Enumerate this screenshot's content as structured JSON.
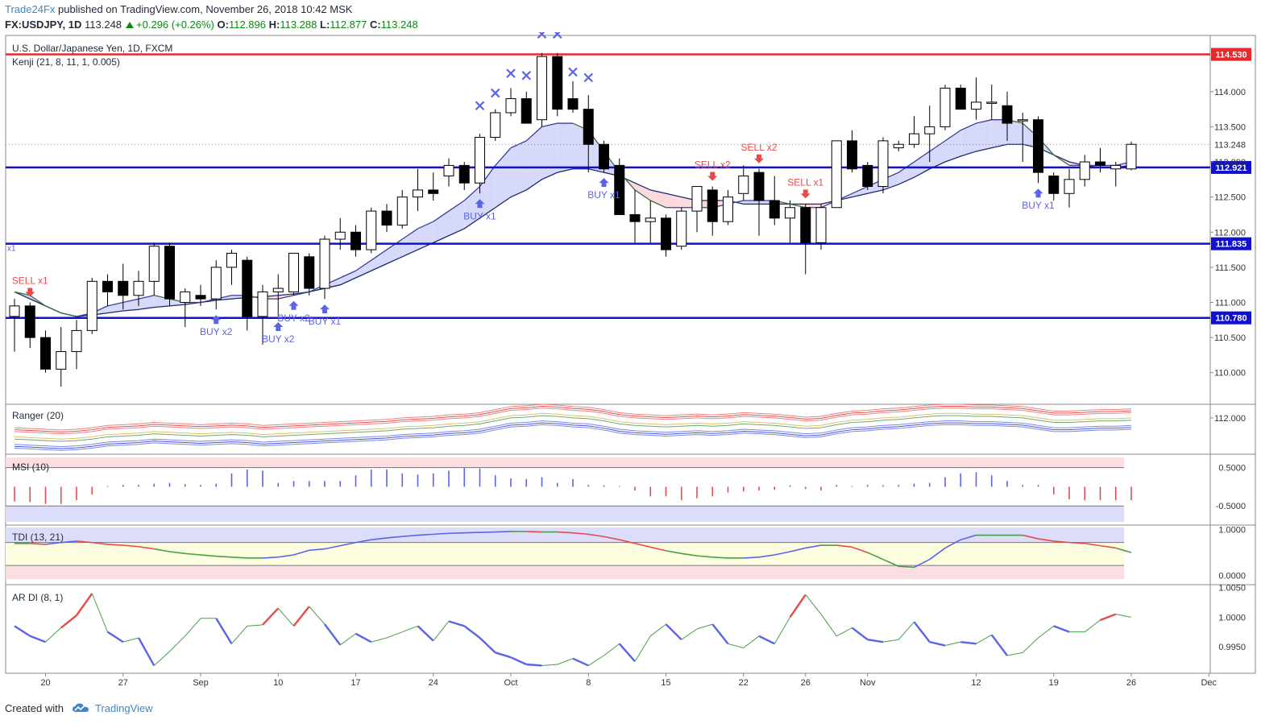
{
  "header": {
    "author": "Trade24Fx",
    "published": "published on TradingView.com, November 26, 2018 10:42 MSK",
    "symbol": "FX:USDJPY, 1D",
    "last": "113.248",
    "change": "+0.296 (+0.26%)",
    "o_label": "O:",
    "o_value": "112.896",
    "h_label": "H:",
    "h_value": "113.288",
    "l_label": "L:",
    "l_value": "112.877",
    "c_label": "C:",
    "c_value": "113.248"
  },
  "footer": {
    "created_with": "Created with",
    "brand": "TradingView"
  },
  "colors": {
    "up_body": "#ffffff",
    "down_body": "#000000",
    "level_red": "#e8282b",
    "level_blue": "#1010d0",
    "buy": "#5b63e8",
    "sell": "#e54b4b",
    "cloud_bull": "#d7d9fb",
    "cloud_bear": "#fcd9dd"
  },
  "chart_data": {
    "type": "candlestick",
    "title": "U.S. Dollar/Japanese Yen, 1D, FXCM",
    "indicator": "Kenji (21, 8, 11, 1, 0.005)",
    "ylim": [
      109.55,
      114.8
    ],
    "y_ticks": [
      "114.000",
      "113.500",
      "113.000",
      "112.500",
      "112.000",
      "111.500",
      "111.000",
      "110.500",
      "110.000"
    ],
    "x_ticks": [
      "20",
      "27",
      "Sep",
      "10",
      "17",
      "24",
      "Oct",
      "8",
      "15",
      "22",
      "26",
      "Nov",
      "12",
      "19",
      "26",
      "Dec"
    ],
    "levels": [
      {
        "value": 114.53,
        "label": "114.530",
        "color": "red"
      },
      {
        "value": 112.921,
        "label": "112.921",
        "color": "blue"
      },
      {
        "value": 111.835,
        "label": "111.835",
        "color": "blue"
      },
      {
        "value": 110.78,
        "label": "110.780",
        "color": "blue"
      }
    ],
    "last_price": {
      "value": 113.248,
      "label": "113.248"
    },
    "candles": [
      [
        110.8,
        111.05,
        110.3,
        110.95
      ],
      [
        110.95,
        111.0,
        110.35,
        110.5
      ],
      [
        110.5,
        110.6,
        110.0,
        110.05
      ],
      [
        110.05,
        110.65,
        109.8,
        110.3
      ],
      [
        110.3,
        110.75,
        110.05,
        110.6
      ],
      [
        110.6,
        111.35,
        110.55,
        111.3
      ],
      [
        111.3,
        111.4,
        110.95,
        111.15
      ],
      [
        111.3,
        111.55,
        110.9,
        111.1
      ],
      [
        111.1,
        111.45,
        110.95,
        111.3
      ],
      [
        111.3,
        111.85,
        111.1,
        111.8
      ],
      [
        111.8,
        111.85,
        110.95,
        111.05
      ],
      [
        111.0,
        111.2,
        110.65,
        111.15
      ],
      [
        111.1,
        111.25,
        110.95,
        111.05
      ],
      [
        111.05,
        111.6,
        110.9,
        111.5
      ],
      [
        111.5,
        111.75,
        111.25,
        111.7
      ],
      [
        111.6,
        111.65,
        110.6,
        110.8
      ],
      [
        110.8,
        111.25,
        110.4,
        111.15
      ],
      [
        111.15,
        111.4,
        110.8,
        111.2
      ],
      [
        111.15,
        111.7,
        111.1,
        111.7
      ],
      [
        111.65,
        111.7,
        111.1,
        111.2
      ],
      [
        111.2,
        111.95,
        111.05,
        111.9
      ],
      [
        111.9,
        112.2,
        111.75,
        112.0
      ],
      [
        112.0,
        112.1,
        111.65,
        111.75
      ],
      [
        111.75,
        112.35,
        111.7,
        112.3
      ],
      [
        112.3,
        112.4,
        112.0,
        112.1
      ],
      [
        112.1,
        112.6,
        112.05,
        112.5
      ],
      [
        112.5,
        112.9,
        112.3,
        112.6
      ],
      [
        112.6,
        112.85,
        112.45,
        112.55
      ],
      [
        112.8,
        113.05,
        112.65,
        112.95
      ],
      [
        112.95,
        113.0,
        112.6,
        112.7
      ],
      [
        112.7,
        113.4,
        112.55,
        113.35
      ],
      [
        113.35,
        113.75,
        113.3,
        113.7
      ],
      [
        113.7,
        114.05,
        113.65,
        113.9
      ],
      [
        113.9,
        114.0,
        113.55,
        113.55
      ],
      [
        113.6,
        114.55,
        113.5,
        114.5
      ],
      [
        114.5,
        114.55,
        113.65,
        113.75
      ],
      [
        113.9,
        114.15,
        113.7,
        113.75
      ],
      [
        113.75,
        113.95,
        112.85,
        113.25
      ],
      [
        113.25,
        113.3,
        112.85,
        112.9
      ],
      [
        112.95,
        113.05,
        112.25,
        112.25
      ],
      [
        112.25,
        112.6,
        111.85,
        112.15
      ],
      [
        112.15,
        112.45,
        111.85,
        112.2
      ],
      [
        112.2,
        112.25,
        111.65,
        111.75
      ],
      [
        111.8,
        112.35,
        111.75,
        112.3
      ],
      [
        112.3,
        112.65,
        112.0,
        112.65
      ],
      [
        112.6,
        112.65,
        111.95,
        112.15
      ],
      [
        112.15,
        112.6,
        112.1,
        112.5
      ],
      [
        112.55,
        112.95,
        112.45,
        112.8
      ],
      [
        112.85,
        112.9,
        111.95,
        112.45
      ],
      [
        112.45,
        112.8,
        112.1,
        112.2
      ],
      [
        112.2,
        112.45,
        111.85,
        112.35
      ],
      [
        112.35,
        112.4,
        111.4,
        111.85
      ],
      [
        111.85,
        112.4,
        111.75,
        112.35
      ],
      [
        112.35,
        113.3,
        112.35,
        113.3
      ],
      [
        113.3,
        113.45,
        112.85,
        112.9
      ],
      [
        112.95,
        113.0,
        112.6,
        112.65
      ],
      [
        112.65,
        113.35,
        112.55,
        113.3
      ],
      [
        113.2,
        113.3,
        113.15,
        113.25
      ],
      [
        113.25,
        113.65,
        113.2,
        113.4
      ],
      [
        113.4,
        113.8,
        113.0,
        113.5
      ],
      [
        113.5,
        114.1,
        113.45,
        114.05
      ],
      [
        114.05,
        114.1,
        113.75,
        113.75
      ],
      [
        113.75,
        114.2,
        113.6,
        113.85
      ],
      [
        113.85,
        114.1,
        113.6,
        113.85
      ],
      [
        113.8,
        114.0,
        113.3,
        113.55
      ],
      [
        113.6,
        113.7,
        113.0,
        113.6
      ],
      [
        113.6,
        113.65,
        112.7,
        112.85
      ],
      [
        112.8,
        112.85,
        112.45,
        112.55
      ],
      [
        112.55,
        112.9,
        112.35,
        112.75
      ],
      [
        112.75,
        113.1,
        112.65,
        113.0
      ],
      [
        113.0,
        113.2,
        112.85,
        112.95
      ],
      [
        112.9,
        113.0,
        112.65,
        112.95
      ],
      [
        112.9,
        113.29,
        112.88,
        113.25
      ]
    ],
    "kenji_fast": [
      111.15,
      111.1,
      110.95,
      110.85,
      110.8,
      110.85,
      110.95,
      111.0,
      111.05,
      111.1,
      111.05,
      111.0,
      111.0,
      111.05,
      111.1,
      111.1,
      111.05,
      111.05,
      111.1,
      111.15,
      111.25,
      111.35,
      111.45,
      111.6,
      111.75,
      111.9,
      112.05,
      112.15,
      112.3,
      112.45,
      112.65,
      112.95,
      113.2,
      113.3,
      113.5,
      113.55,
      113.55,
      113.45,
      113.15,
      112.85,
      112.6,
      112.45,
      112.35,
      112.35,
      112.35,
      112.35,
      112.4,
      112.45,
      112.45,
      112.45,
      112.4,
      112.35,
      112.35,
      112.45,
      112.55,
      112.65,
      112.75,
      112.85,
      113.0,
      113.15,
      113.3,
      113.45,
      113.55,
      113.6,
      113.6,
      113.55,
      113.35,
      113.1,
      112.95,
      112.95,
      112.95,
      112.95,
      113.0
    ],
    "kenji_slow": [
      111.15,
      111.05,
      110.95,
      110.85,
      110.8,
      110.82,
      110.85,
      110.88,
      110.9,
      110.93,
      110.95,
      110.97,
      111.0,
      111.03,
      111.05,
      111.07,
      111.08,
      111.1,
      111.12,
      111.15,
      111.2,
      111.25,
      111.35,
      111.45,
      111.55,
      111.65,
      111.75,
      111.85,
      111.95,
      112.05,
      112.2,
      112.35,
      112.5,
      112.6,
      112.75,
      112.85,
      112.9,
      112.9,
      112.85,
      112.8,
      112.7,
      112.6,
      112.55,
      112.5,
      112.45,
      112.45,
      112.45,
      112.4,
      112.4,
      112.4,
      112.4,
      112.4,
      112.4,
      112.45,
      112.5,
      112.55,
      112.6,
      112.68,
      112.78,
      112.9,
      113.0,
      113.08,
      113.15,
      113.2,
      113.25,
      113.25,
      113.2,
      113.1,
      113.0,
      112.95,
      112.92,
      112.92,
      112.95
    ],
    "signals": [
      {
        "i": 1,
        "type": "sell",
        "label": "SELL x1"
      },
      {
        "i": 13,
        "type": "buy",
        "label": "BUY x2"
      },
      {
        "i": 17,
        "type": "buy",
        "label": "BUY x2"
      },
      {
        "i": 18,
        "type": "buy",
        "label": "BUY x2"
      },
      {
        "i": 20,
        "type": "buy",
        "label": "BUY x1"
      },
      {
        "i": 30,
        "type": "buy",
        "label": "BUY x1"
      },
      {
        "i": 38,
        "type": "buy",
        "label": "BUY x1"
      },
      {
        "i": 45,
        "type": "sell",
        "label": "SELL x2"
      },
      {
        "i": 48,
        "type": "sell",
        "label": "SELL x2"
      },
      {
        "i": 51,
        "type": "sell",
        "label": "SELL x1"
      },
      {
        "i": 66,
        "type": "buy",
        "label": "BUY x1"
      }
    ],
    "edge_label": "x1",
    "crosses": [
      {
        "i": 30,
        "v": 113.8
      },
      {
        "i": 31,
        "v": 113.98
      },
      {
        "i": 32,
        "v": 114.26
      },
      {
        "i": 33,
        "v": 114.23
      },
      {
        "i": 34,
        "v": 114.82
      },
      {
        "i": 35,
        "v": 114.82
      },
      {
        "i": 36,
        "v": 114.28
      },
      {
        "i": 37,
        "v": 114.2
      }
    ],
    "ranger": {
      "name": "Ranger (20)",
      "y_ticks": [
        "112.000"
      ],
      "mid": [
        110.6,
        110.55,
        110.5,
        110.45,
        110.5,
        110.6,
        110.75,
        110.8,
        110.85,
        110.95,
        110.9,
        110.85,
        110.8,
        110.85,
        110.9,
        110.85,
        110.75,
        110.8,
        110.85,
        110.9,
        110.95,
        111.0,
        111.05,
        111.1,
        111.15,
        111.25,
        111.3,
        111.35,
        111.45,
        111.5,
        111.6,
        111.8,
        112.0,
        112.05,
        112.15,
        112.1,
        112.0,
        111.95,
        111.8,
        111.6,
        111.5,
        111.45,
        111.4,
        111.45,
        111.5,
        111.45,
        111.5,
        111.6,
        111.55,
        111.5,
        111.4,
        111.3,
        111.35,
        111.55,
        111.7,
        111.75,
        111.85,
        111.9,
        112.0,
        112.1,
        112.15,
        112.15,
        112.1,
        112.1,
        112.05,
        112.0,
        111.85,
        111.7,
        111.7,
        111.75,
        111.8,
        111.8,
        111.85
      ]
    },
    "msi": {
      "name": "MSI (10)",
      "y_ticks": [
        "0.5000",
        "-0.5000"
      ],
      "values": [
        -0.38,
        -0.4,
        -0.45,
        -0.45,
        -0.35,
        -0.2,
        0.0,
        0.03,
        0.03,
        0.08,
        0.1,
        0.07,
        0.05,
        0.08,
        0.35,
        0.45,
        0.42,
        0.1,
        0.15,
        0.15,
        0.15,
        0.15,
        0.3,
        0.45,
        0.45,
        0.35,
        0.32,
        0.35,
        0.42,
        0.5,
        0.48,
        0.3,
        0.22,
        0.2,
        0.25,
        0.1,
        0.2,
        0.05,
        0.02,
        0.0,
        -0.1,
        -0.25,
        -0.25,
        -0.35,
        -0.3,
        -0.25,
        -0.15,
        -0.12,
        -0.1,
        -0.08,
        0.02,
        -0.06,
        -0.1,
        0.05,
        0.0,
        0.05,
        0.02,
        0.05,
        0.08,
        0.1,
        0.25,
        0.35,
        0.38,
        0.3,
        0.15,
        0.05,
        0.03,
        -0.2,
        -0.33,
        -0.35,
        -0.35,
        -0.35,
        -0.35
      ]
    },
    "tdi": {
      "name": "TDI (13, 21)",
      "y_ticks": [
        "1.0000",
        "0.0000"
      ],
      "values": [
        0.7,
        0.7,
        0.68,
        0.72,
        0.75,
        0.72,
        0.68,
        0.66,
        0.63,
        0.58,
        0.52,
        0.48,
        0.45,
        0.42,
        0.4,
        0.38,
        0.38,
        0.4,
        0.45,
        0.55,
        0.58,
        0.65,
        0.72,
        0.78,
        0.82,
        0.85,
        0.88,
        0.9,
        0.92,
        0.93,
        0.94,
        0.95,
        0.96,
        0.96,
        0.95,
        0.95,
        0.93,
        0.9,
        0.85,
        0.78,
        0.7,
        0.62,
        0.54,
        0.48,
        0.43,
        0.4,
        0.38,
        0.38,
        0.4,
        0.45,
        0.52,
        0.6,
        0.66,
        0.66,
        0.62,
        0.5,
        0.35,
        0.2,
        0.18,
        0.35,
        0.6,
        0.78,
        0.88,
        0.88,
        0.88,
        0.88,
        0.8,
        0.75,
        0.72,
        0.7,
        0.65,
        0.6,
        0.5
      ]
    },
    "ar_di": {
      "name": "AR DI (8, 1)",
      "y_ticks": [
        "1.0050",
        "1.0000",
        "0.9950"
      ],
      "values": [
        0.9985,
        0.9968,
        0.9958,
        0.9982,
        1.0003,
        1.004,
        0.9975,
        0.9958,
        0.9965,
        0.9918,
        0.9942,
        0.9968,
        0.9998,
        0.9998,
        0.9955,
        0.9985,
        0.9987,
        1.0015,
        0.9985,
        1.0018,
        0.9988,
        0.9953,
        0.9972,
        0.9958,
        0.9965,
        0.9975,
        0.9985,
        0.996,
        0.9993,
        0.9985,
        0.9965,
        0.994,
        0.9932,
        0.992,
        0.9918,
        0.992,
        0.993,
        0.9918,
        0.9935,
        0.9955,
        0.9925,
        0.9968,
        0.9988,
        0.9962,
        0.998,
        0.9988,
        0.9955,
        0.9948,
        0.9968,
        0.9955,
        1.0,
        1.0038,
        1.0005,
        0.9968,
        0.9982,
        0.9962,
        0.9958,
        0.9962,
        0.9992,
        0.9958,
        0.9952,
        0.9958,
        0.9955,
        0.997,
        0.9935,
        0.994,
        0.9965,
        0.9985,
        0.9975,
        0.9975,
        0.9995,
        1.0005,
        1.0
      ]
    }
  }
}
